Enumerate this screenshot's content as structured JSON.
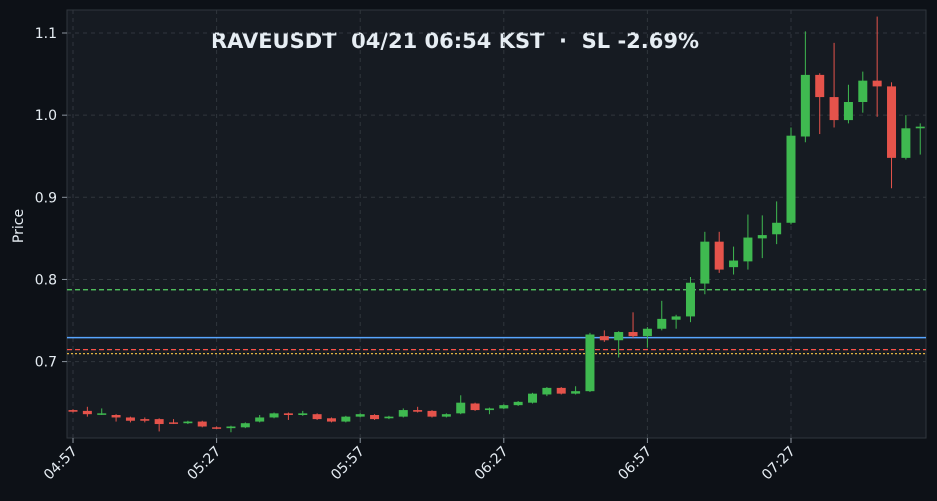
{
  "chart_data": {
    "type": "candlestick",
    "title": "RAVEUSDT  04/21 06:54 KST  ·  SL -2.69%",
    "ylabel": "Price",
    "categories": [
      "04:57",
      null,
      null,
      null,
      null,
      null,
      null,
      null,
      null,
      null,
      "05:27",
      null,
      null,
      null,
      null,
      null,
      null,
      null,
      null,
      null,
      "05:57",
      null,
      null,
      null,
      null,
      null,
      null,
      null,
      null,
      null,
      "06:27",
      null,
      null,
      null,
      null,
      null,
      null,
      null,
      null,
      null,
      "06:57",
      null,
      null,
      null,
      null,
      null,
      null,
      null,
      null,
      null,
      "07:27",
      null,
      null,
      null,
      null,
      null,
      null,
      null,
      null,
      null
    ],
    "open": [
      0.641,
      0.64,
      0.637,
      0.635,
      0.632,
      0.63,
      0.63,
      0.626,
      0.625,
      0.627,
      0.62,
      0.619,
      0.62,
      0.627,
      0.632,
      0.637,
      0.635,
      0.636,
      0.631,
      0.627,
      0.633,
      0.635,
      0.631,
      0.633,
      0.641,
      0.64,
      0.633,
      0.637,
      0.649,
      0.641,
      0.643,
      0.647,
      0.65,
      0.66,
      0.668,
      0.661,
      0.664,
      0.731,
      0.726,
      0.736,
      0.731,
      0.74,
      0.751,
      0.755,
      0.795,
      0.846,
      0.815,
      0.822,
      0.85,
      0.855,
      0.869,
      0.974,
      1.049,
      1.022,
      0.994,
      1.016,
      1.042,
      1.035,
      0.948,
      0.984
    ],
    "high": [
      0.642,
      0.645,
      0.643,
      0.636,
      0.633,
      0.632,
      0.631,
      0.63,
      0.628,
      0.628,
      0.621,
      0.622,
      0.626,
      0.635,
      0.638,
      0.638,
      0.64,
      0.637,
      0.632,
      0.634,
      0.637,
      0.636,
      0.634,
      0.643,
      0.645,
      0.641,
      0.637,
      0.659,
      0.65,
      0.644,
      0.648,
      0.652,
      0.662,
      0.669,
      0.669,
      0.67,
      0.735,
      0.738,
      0.737,
      0.76,
      0.742,
      0.774,
      0.757,
      0.803,
      0.858,
      0.858,
      0.84,
      0.879,
      0.878,
      0.895,
      0.985,
      1.102,
      1.051,
      1.088,
      1.037,
      1.053,
      1.12,
      1.04,
      1.0,
      0.99
    ],
    "low": [
      0.638,
      0.633,
      0.635,
      0.627,
      0.626,
      0.626,
      0.615,
      0.624,
      0.624,
      0.62,
      0.618,
      0.614,
      0.619,
      0.626,
      0.631,
      0.629,
      0.634,
      0.629,
      0.626,
      0.626,
      0.632,
      0.629,
      0.63,
      0.632,
      0.638,
      0.632,
      0.632,
      0.636,
      0.64,
      0.636,
      0.642,
      0.646,
      0.649,
      0.658,
      0.66,
      0.66,
      0.663,
      0.724,
      0.705,
      0.729,
      0.717,
      0.738,
      0.74,
      0.748,
      0.782,
      0.808,
      0.806,
      0.812,
      0.826,
      0.843,
      0.867,
      0.967,
      0.977,
      0.985,
      0.99,
      1.003,
      0.998,
      0.911,
      0.946,
      0.952
    ],
    "close": [
      0.639,
      0.636,
      0.637,
      0.632,
      0.628,
      0.628,
      0.624,
      0.625,
      0.627,
      0.621,
      0.619,
      0.621,
      0.625,
      0.632,
      0.637,
      0.635,
      0.637,
      0.63,
      0.627,
      0.633,
      0.636,
      0.63,
      0.633,
      0.641,
      0.639,
      0.633,
      0.636,
      0.65,
      0.641,
      0.643,
      0.647,
      0.651,
      0.661,
      0.668,
      0.661,
      0.664,
      0.733,
      0.726,
      0.736,
      0.731,
      0.74,
      0.752,
      0.755,
      0.796,
      0.846,
      0.812,
      0.823,
      0.851,
      0.854,
      0.869,
      0.975,
      1.049,
      1.022,
      0.994,
      1.016,
      1.042,
      1.035,
      0.948,
      0.984,
      0.986
    ],
    "up_color": "#3fb950",
    "down_color": "#e5534b",
    "ylim": [
      0.607,
      1.128
    ],
    "yticks": [
      0.7,
      0.8,
      0.9,
      {
        "value": 1.0,
        "label": "1.0"
      },
      1.1
    ],
    "grid": true,
    "lines": [
      {
        "value": 0.7875,
        "color": "#56d364",
        "style": "dashed"
      },
      {
        "value": 0.7292,
        "color": "#58a6ff",
        "style": "solid"
      },
      {
        "value": 0.7146,
        "color": "#f85149",
        "style": "dashed"
      },
      {
        "value": 0.7097,
        "color": "#e3b341",
        "style": "dotted"
      }
    ]
  }
}
